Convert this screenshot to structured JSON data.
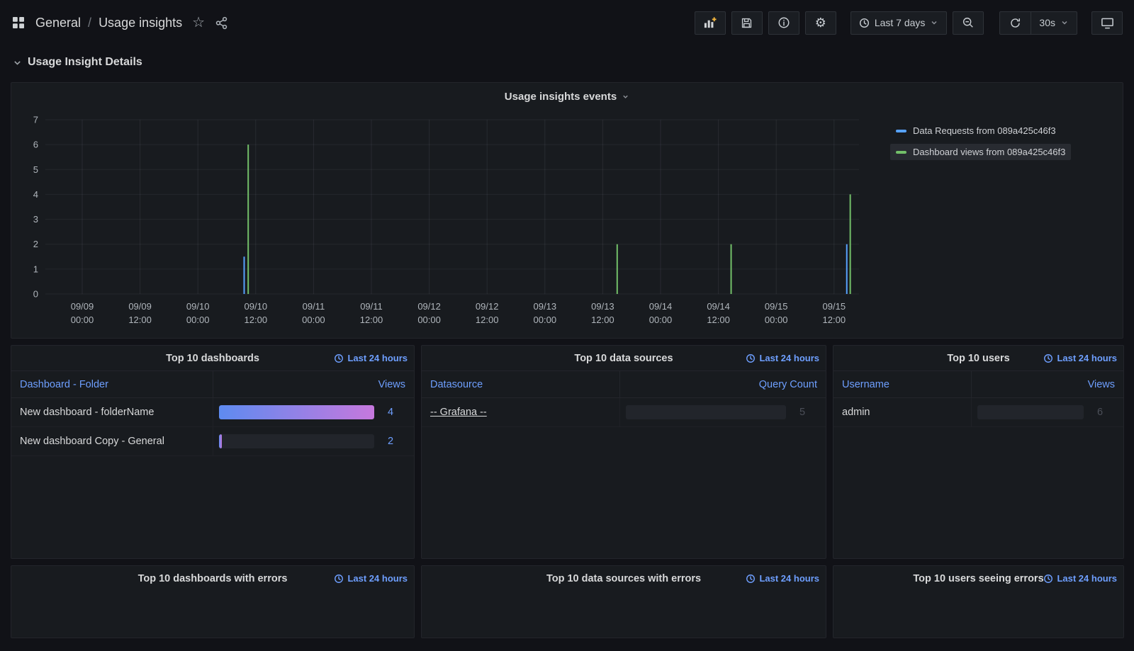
{
  "nav": {
    "breadcrumb": {
      "section": "General",
      "separator": "/",
      "page": "Usage insights"
    },
    "time_picker_label": "Last 7 days",
    "refresh_interval": "30s"
  },
  "icons": {
    "dashboards-grid-icon": "▦",
    "star-icon": "☆",
    "share-icon": "↗",
    "add-panel-icon": "📊+",
    "save-icon": "💾",
    "info-icon": "ⓘ",
    "settings-icon": "⚙",
    "clock-icon": "🕓",
    "chevron-down-icon": "⌄",
    "zoom-out-icon": "🔍−",
    "refresh-icon": "⟳",
    "tv-icon": "🖵"
  },
  "row_header": {
    "title": "Usage Insight Details"
  },
  "chart_data": {
    "type": "line",
    "title": "Usage insights events",
    "ylim": [
      0,
      7
    ],
    "yticks": [
      0,
      1,
      2,
      3,
      4,
      5,
      6,
      7
    ],
    "grid": true,
    "legend_position": "right",
    "x_ticks": [
      {
        "date": "09/09",
        "time": "00:00"
      },
      {
        "date": "09/09",
        "time": "12:00"
      },
      {
        "date": "09/10",
        "time": "00:00"
      },
      {
        "date": "09/10",
        "time": "12:00"
      },
      {
        "date": "09/11",
        "time": "00:00"
      },
      {
        "date": "09/11",
        "time": "12:00"
      },
      {
        "date": "09/12",
        "time": "00:00"
      },
      {
        "date": "09/12",
        "time": "12:00"
      },
      {
        "date": "09/13",
        "time": "00:00"
      },
      {
        "date": "09/13",
        "time": "12:00"
      },
      {
        "date": "09/14",
        "time": "00:00"
      },
      {
        "date": "09/14",
        "time": "12:00"
      },
      {
        "date": "09/15",
        "time": "00:00"
      },
      {
        "date": "09/15",
        "time": "12:00"
      }
    ],
    "series": [
      {
        "name": "Data Requests from 089a425c46f3",
        "color": "#57a2ff",
        "highlighted": false,
        "points": [
          {
            "x_tick": 2.8,
            "value": 1.5
          },
          {
            "x_tick": 13.22,
            "value": 2
          }
        ]
      },
      {
        "name": "Dashboard views from 089a425c46f3",
        "color": "#73bf69",
        "highlighted": true,
        "points": [
          {
            "x_tick": 2.87,
            "value": 6
          },
          {
            "x_tick": 9.25,
            "value": 2
          },
          {
            "x_tick": 11.22,
            "value": 2
          },
          {
            "x_tick": 13.28,
            "value": 4
          }
        ]
      }
    ]
  },
  "panels": {
    "dashboards": {
      "title": "Top 10 dashboards",
      "time_badge": "Last 24 hours",
      "columns": [
        "Dashboard - Folder",
        "Views"
      ],
      "rows": [
        {
          "label": "New dashboard - folderName",
          "value": 4,
          "bar_pct": 100
        },
        {
          "label": "New dashboard Copy - General",
          "value": 2,
          "bar_pct": 2
        }
      ]
    },
    "datasources": {
      "title": "Top 10 data sources",
      "time_badge": "Last 24 hours",
      "columns": [
        "Datasource",
        "Query Count"
      ],
      "rows": [
        {
          "label": "-- Grafana --",
          "value": 5,
          "bar_pct": 0
        }
      ]
    },
    "users": {
      "title": "Top 10 users",
      "time_badge": "Last 24 hours",
      "columns": [
        "Username",
        "Views"
      ],
      "rows": [
        {
          "label": "admin",
          "value": 6,
          "bar_pct": 0
        }
      ]
    },
    "dashboards_errors": {
      "title": "Top 10 dashboards with errors",
      "time_badge": "Last 24 hours"
    },
    "datasources_errors": {
      "title": "Top 10 data sources with errors",
      "time_badge": "Last 24 hours"
    },
    "users_errors": {
      "title": "Top 10 users seeing errors",
      "time_badge": "Last 24 hours"
    }
  }
}
